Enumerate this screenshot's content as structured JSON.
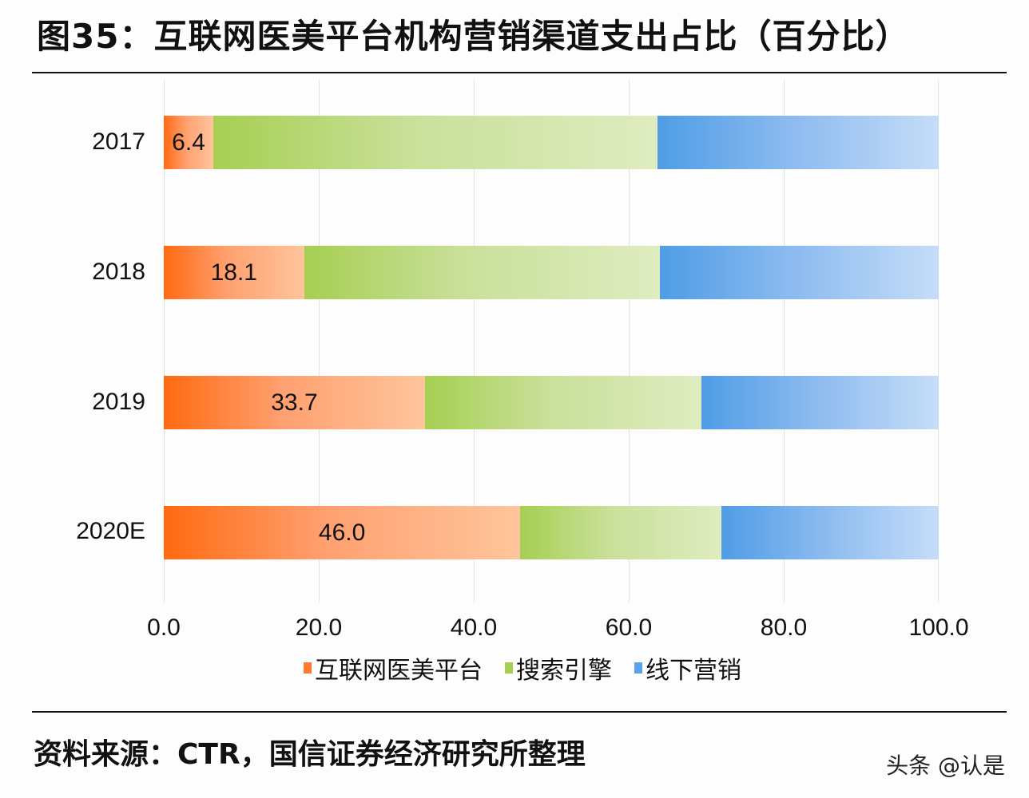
{
  "title": "图35：互联网医美平台机构营销渠道支出占比（百分比）",
  "source": "资料来源：CTR，国信证券经济研究所整理",
  "watermark": "头条 @认是",
  "colors": {
    "orange": "#ff6a10",
    "green": "#a6cf52",
    "blue": "#4f9de6"
  },
  "legend": [
    {
      "label": "互联网医美平台",
      "color": "#ff7a30"
    },
    {
      "label": "搜索引擎",
      "color": "#a6cf52"
    },
    {
      "label": "线下营销",
      "color": "#5aa2ea"
    }
  ],
  "x_ticks": [
    "0.0",
    "20.0",
    "40.0",
    "60.0",
    "80.0",
    "100.0"
  ],
  "rows": [
    {
      "label": "2017",
      "internet": 6.4,
      "internet_label": "6.4",
      "search": 57.3,
      "offline": 36.3
    },
    {
      "label": "2018",
      "internet": 18.1,
      "internet_label": "18.1",
      "search": 45.9,
      "offline": 36.0
    },
    {
      "label": "2019",
      "internet": 33.7,
      "internet_label": "33.7",
      "search": 35.7,
      "offline": 30.6
    },
    {
      "label": "2020E",
      "internet": 46.0,
      "internet_label": "46.0",
      "search": 26.0,
      "offline": 28.0
    }
  ],
  "chart_data": {
    "type": "bar",
    "orientation": "horizontal",
    "stacked": true,
    "title": "图35：互联网医美平台机构营销渠道支出占比（百分比）",
    "categories": [
      "2017",
      "2018",
      "2019",
      "2020E"
    ],
    "series": [
      {
        "name": "互联网医美平台",
        "values": [
          6.4,
          18.1,
          33.7,
          46.0
        ]
      },
      {
        "name": "搜索引擎",
        "values": [
          57.3,
          45.9,
          35.7,
          26.0
        ]
      },
      {
        "name": "线下营销",
        "values": [
          36.3,
          36.0,
          30.6,
          28.0
        ]
      }
    ],
    "data_labels": {
      "互联网医美平台": [
        "6.4",
        "18.1",
        "33.7",
        "46.0"
      ]
    },
    "xlabel": "",
    "ylabel": "",
    "xlim": [
      0,
      100
    ],
    "x_ticks": [
      "0.0",
      "20.0",
      "40.0",
      "60.0",
      "80.0",
      "100.0"
    ],
    "grid": "vertical",
    "legend_position": "bottom",
    "source": "资料来源：CTR，国信证券经济研究所整理"
  }
}
